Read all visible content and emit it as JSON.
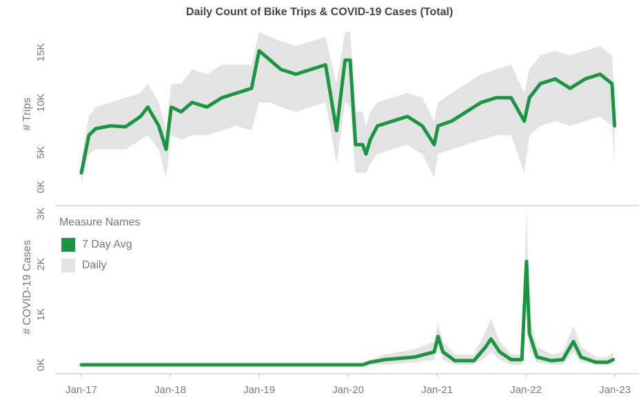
{
  "title": "Daily Count of Bike Trips & COVID-19 Cases (Total)",
  "colors": {
    "avg": "#1a9641",
    "daily": "#e3e3e3",
    "axis": "#bdbdbd",
    "text": "#7a7a7a"
  },
  "legend": {
    "title": "Measure Names",
    "items": [
      {
        "label": "7 Day Avg",
        "color": "#1a9641"
      },
      {
        "label": "Daily",
        "color": "#e3e3e3"
      }
    ]
  },
  "chart_data": [
    {
      "type": "line",
      "ylabel": "# Trips",
      "yticks": [
        "0K",
        "5K",
        "10K",
        "15K"
      ],
      "ylim": [
        0,
        15500
      ],
      "x": [
        "2017-01-01",
        "2017-02-01",
        "2017-03-01",
        "2017-05-01",
        "2017-07-01",
        "2017-09-01",
        "2017-10-01",
        "2017-11-15",
        "2017-12-15",
        "2018-01-05",
        "2018-02-15",
        "2018-04-01",
        "2018-06-01",
        "2018-08-01",
        "2018-10-01",
        "2018-12-01",
        "2019-01-01",
        "2019-02-15",
        "2019-04-01",
        "2019-06-01",
        "2019-08-01",
        "2019-10-01",
        "2019-11-15",
        "2019-12-20",
        "2020-01-10",
        "2020-02-01",
        "2020-03-01",
        "2020-03-15",
        "2020-04-01",
        "2020-05-01",
        "2020-07-01",
        "2020-09-01",
        "2020-11-01",
        "2020-12-20",
        "2021-01-05",
        "2021-03-01",
        "2021-05-01",
        "2021-07-01",
        "2021-09-01",
        "2021-11-01",
        "2021-12-25",
        "2022-01-15",
        "2022-03-01",
        "2022-05-01",
        "2022-07-01",
        "2022-09-01",
        "2022-11-01",
        "2022-12-20",
        "2022-12-31"
      ],
      "series": [
        {
          "name": "7 Day Avg",
          "values": [
            1500,
            5500,
            6200,
            6500,
            6400,
            7500,
            8500,
            6500,
            4000,
            8500,
            8000,
            9000,
            8500,
            9500,
            10000,
            10500,
            14500,
            13500,
            12500,
            12000,
            12500,
            13000,
            6000,
            13500,
            13500,
            4500,
            4500,
            3500,
            5000,
            6500,
            7000,
            7500,
            6500,
            4500,
            6500,
            7000,
            8000,
            9000,
            9500,
            9500,
            7000,
            9500,
            11000,
            11500,
            10500,
            11500,
            12000,
            11000,
            6500
          ]
        },
        {
          "name": "Daily",
          "upper": [
            3000,
            7500,
            8500,
            9000,
            9500,
            10000,
            11000,
            9000,
            6000,
            11000,
            11000,
            12500,
            12000,
            13000,
            13000,
            13000,
            16500,
            16000,
            15500,
            15000,
            15500,
            16000,
            11000,
            16500,
            16500,
            8000,
            8000,
            6500,
            8000,
            9000,
            9500,
            10000,
            9500,
            7000,
            9000,
            10000,
            11000,
            12000,
            12500,
            13000,
            10000,
            12500,
            14000,
            14500,
            14000,
            14500,
            15000,
            14000,
            9000
          ],
          "lower": [
            500,
            3500,
            4000,
            4000,
            4000,
            5000,
            5500,
            4000,
            1000,
            5500,
            5000,
            5500,
            5500,
            6000,
            6500,
            6000,
            9000,
            9000,
            8500,
            8000,
            8500,
            9000,
            2500,
            9000,
            8500,
            1500,
            1500,
            1500,
            2500,
            3500,
            4000,
            4500,
            3500,
            1000,
            3500,
            4000,
            4500,
            5000,
            5500,
            5500,
            1500,
            5500,
            6500,
            7000,
            6500,
            7000,
            7500,
            6500,
            2500
          ]
        }
      ]
    },
    {
      "type": "line",
      "ylabel": "# COVID-19 Cases",
      "yticks": [
        "0K",
        "1K",
        "2K",
        "3K"
      ],
      "ylim": [
        0,
        3000
      ],
      "xticks": [
        "Jan-17",
        "Jan-18",
        "Jan-19",
        "Jan-20",
        "Jan-21",
        "Jan-22",
        "Jan-23"
      ],
      "x": [
        "2017-01-01",
        "2020-03-01",
        "2020-04-01",
        "2020-06-01",
        "2020-10-01",
        "2020-12-20",
        "2021-01-05",
        "2021-01-25",
        "2021-03-15",
        "2021-06-01",
        "2021-07-20",
        "2021-08-10",
        "2021-09-15",
        "2021-11-01",
        "2021-12-15",
        "2022-01-03",
        "2022-01-15",
        "2022-02-15",
        "2022-04-15",
        "2022-06-01",
        "2022-07-15",
        "2022-08-15",
        "2022-10-15",
        "2022-12-01",
        "2022-12-25"
      ],
      "series": [
        {
          "name": "7 Day Avg",
          "values": [
            0,
            0,
            50,
            100,
            150,
            250,
            550,
            250,
            80,
            80,
            350,
            500,
            250,
            100,
            100,
            2000,
            600,
            150,
            80,
            100,
            450,
            150,
            50,
            50,
            100
          ]
        },
        {
          "name": "Daily",
          "upper": [
            0,
            0,
            100,
            200,
            300,
            450,
            800,
            450,
            200,
            200,
            650,
            900,
            450,
            200,
            200,
            3000,
            1000,
            350,
            200,
            250,
            750,
            350,
            150,
            150,
            250
          ],
          "lower": [
            0,
            0,
            0,
            0,
            50,
            100,
            350,
            100,
            0,
            0,
            150,
            250,
            100,
            0,
            0,
            1200,
            300,
            50,
            0,
            0,
            250,
            50,
            0,
            0,
            0
          ]
        }
      ]
    }
  ]
}
